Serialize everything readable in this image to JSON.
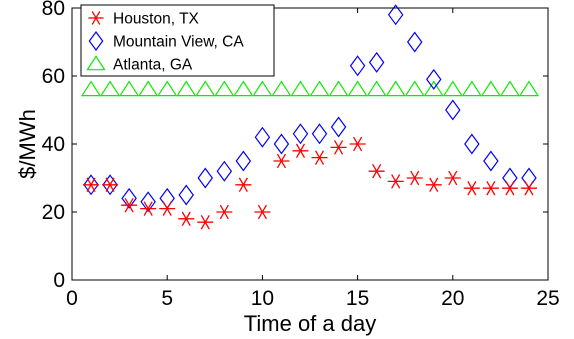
{
  "chart_data": {
    "type": "scatter",
    "xlabel": "Time of a day",
    "ylabel": "$/MWh",
    "xlim": [
      0,
      25
    ],
    "ylim": [
      0,
      80
    ],
    "xticks": [
      0,
      5,
      10,
      15,
      20,
      25
    ],
    "yticks": [
      0,
      20,
      40,
      60,
      80
    ],
    "grid": false,
    "legend_position": "top-left",
    "series": [
      {
        "name": "Houston, TX",
        "marker": "asterisk",
        "color": "#ff0000",
        "x": [
          1,
          2,
          3,
          4,
          5,
          6,
          7,
          8,
          9,
          10,
          11,
          12,
          13,
          14,
          15,
          16,
          17,
          18,
          19,
          20,
          21,
          22,
          23,
          24
        ],
        "y": [
          28,
          28,
          22,
          21,
          21,
          18,
          17,
          20,
          28,
          20,
          35,
          38,
          36,
          39,
          40,
          32,
          29,
          30,
          28,
          30,
          27,
          27,
          27,
          27
        ]
      },
      {
        "name": "Mountain View, CA",
        "marker": "diamond",
        "color": "#0000ff",
        "x": [
          1,
          2,
          3,
          4,
          5,
          6,
          7,
          8,
          9,
          10,
          11,
          12,
          13,
          14,
          15,
          16,
          17,
          18,
          19,
          20,
          21,
          22,
          23,
          24
        ],
        "y": [
          28,
          28,
          24,
          23,
          24,
          25,
          30,
          32,
          35,
          42,
          40,
          43,
          43,
          45,
          63,
          64,
          78,
          70,
          59,
          50,
          40,
          35,
          30,
          30
        ]
      },
      {
        "name": "Atlanta, GA",
        "marker": "triangle",
        "color": "#00ee00",
        "x": [
          1,
          2,
          3,
          4,
          5,
          6,
          7,
          8,
          9,
          10,
          11,
          12,
          13,
          14,
          15,
          16,
          17,
          18,
          19,
          20,
          21,
          22,
          23,
          24
        ],
        "y": [
          56,
          56,
          56,
          56,
          56,
          56,
          56,
          56,
          56,
          56,
          56,
          56,
          56,
          56,
          56,
          56,
          56,
          56,
          56,
          56,
          56,
          56,
          56,
          56
        ]
      }
    ]
  }
}
